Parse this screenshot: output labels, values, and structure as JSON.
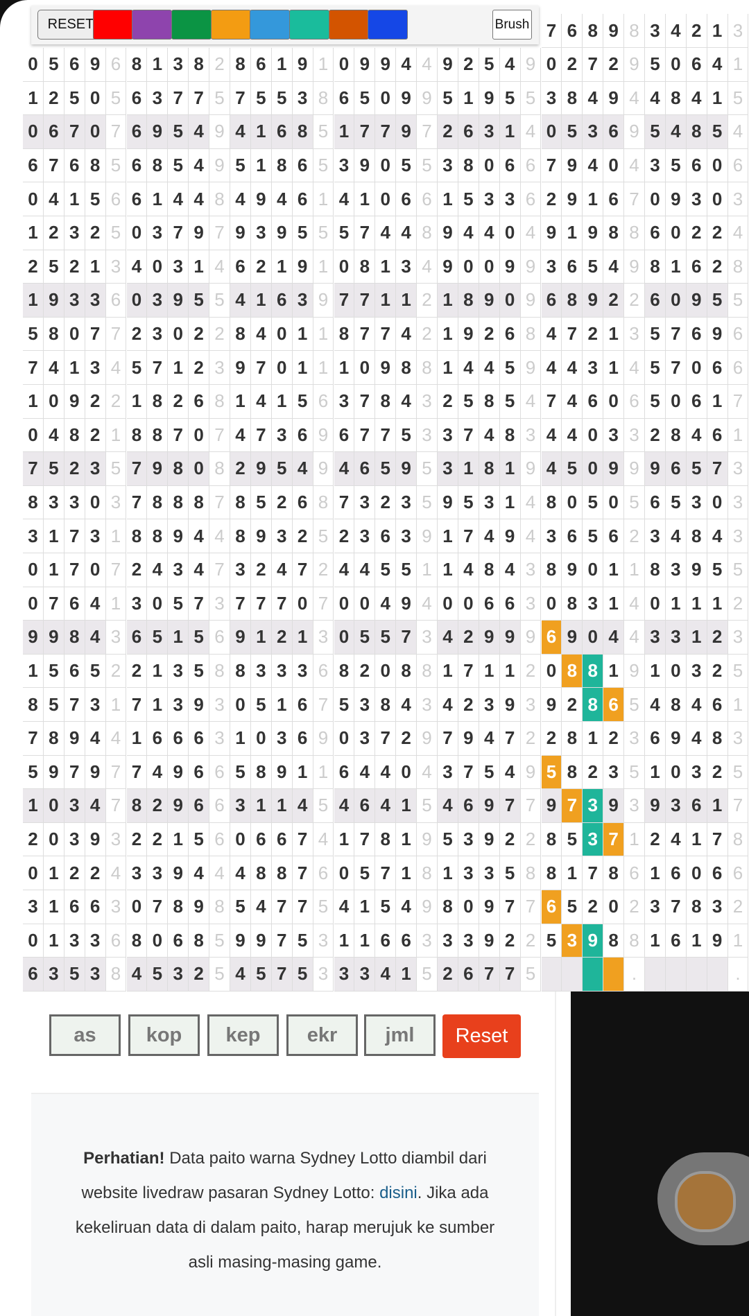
{
  "toolbar": {
    "reset": "RESET",
    "brush": "Brush",
    "colors": [
      "#ff0000",
      "#8e44ad",
      "#0b9444",
      "#f39c12",
      "#3498db",
      "#1abc9c",
      "#d35400",
      "#1547e6"
    ]
  },
  "grid": {
    "partial_row": [
      "7",
      "6",
      "8",
      "9",
      "8",
      "3",
      "4",
      "2",
      "1",
      "3"
    ],
    "rows": [
      [
        "0",
        "5",
        "6",
        "9",
        "6",
        "8",
        "1",
        "3",
        "8",
        "2",
        "8",
        "6",
        "1",
        "9",
        "1",
        "0",
        "9",
        "9",
        "4",
        "4",
        "9",
        "2",
        "5",
        "4",
        "9",
        "0",
        "2",
        "7",
        "2",
        "9",
        "5",
        "0",
        "6",
        "4",
        "1"
      ],
      [
        "1",
        "2",
        "5",
        "0",
        "5",
        "6",
        "3",
        "7",
        "7",
        "5",
        "7",
        "5",
        "5",
        "3",
        "8",
        "6",
        "5",
        "0",
        "9",
        "9",
        "5",
        "1",
        "9",
        "5",
        "5",
        "3",
        "8",
        "4",
        "9",
        "4",
        "4",
        "8",
        "4",
        "1",
        "5"
      ],
      [
        "0",
        "6",
        "7",
        "0",
        "7",
        "6",
        "9",
        "5",
        "4",
        "9",
        "4",
        "1",
        "6",
        "8",
        "5",
        "1",
        "7",
        "7",
        "9",
        "7",
        "2",
        "6",
        "3",
        "1",
        "4",
        "0",
        "5",
        "3",
        "6",
        "9",
        "5",
        "4",
        "8",
        "5",
        "4"
      ],
      [
        "6",
        "7",
        "6",
        "8",
        "5",
        "6",
        "8",
        "5",
        "4",
        "9",
        "5",
        "1",
        "8",
        "6",
        "5",
        "3",
        "9",
        "0",
        "5",
        "5",
        "3",
        "8",
        "0",
        "6",
        "6",
        "7",
        "9",
        "4",
        "0",
        "4",
        "3",
        "5",
        "6",
        "0",
        "6"
      ],
      [
        "0",
        "4",
        "1",
        "5",
        "6",
        "6",
        "1",
        "4",
        "4",
        "8",
        "4",
        "9",
        "4",
        "6",
        "1",
        "4",
        "1",
        "0",
        "6",
        "6",
        "1",
        "5",
        "3",
        "3",
        "6",
        "2",
        "9",
        "1",
        "6",
        "7",
        "0",
        "9",
        "3",
        "0",
        "3"
      ],
      [
        "1",
        "2",
        "3",
        "2",
        "5",
        "0",
        "3",
        "7",
        "9",
        "7",
        "9",
        "3",
        "9",
        "5",
        "5",
        "5",
        "7",
        "4",
        "4",
        "8",
        "9",
        "4",
        "4",
        "0",
        "4",
        "9",
        "1",
        "9",
        "8",
        "8",
        "6",
        "0",
        "2",
        "2",
        "4"
      ],
      [
        "2",
        "5",
        "2",
        "1",
        "3",
        "4",
        "0",
        "3",
        "1",
        "4",
        "6",
        "2",
        "1",
        "9",
        "1",
        "0",
        "8",
        "1",
        "3",
        "4",
        "9",
        "0",
        "0",
        "9",
        "9",
        "3",
        "6",
        "5",
        "4",
        "9",
        "8",
        "1",
        "6",
        "2",
        "8"
      ],
      [
        "1",
        "9",
        "3",
        "3",
        "6",
        "0",
        "3",
        "9",
        "5",
        "5",
        "4",
        "1",
        "6",
        "3",
        "9",
        "7",
        "7",
        "1",
        "1",
        "2",
        "1",
        "8",
        "9",
        "0",
        "9",
        "6",
        "8",
        "9",
        "2",
        "2",
        "6",
        "0",
        "9",
        "5",
        "5"
      ],
      [
        "5",
        "8",
        "0",
        "7",
        "7",
        "2",
        "3",
        "0",
        "2",
        "2",
        "8",
        "4",
        "0",
        "1",
        "1",
        "8",
        "7",
        "7",
        "4",
        "2",
        "1",
        "9",
        "2",
        "6",
        "8",
        "4",
        "7",
        "2",
        "1",
        "3",
        "5",
        "7",
        "6",
        "9",
        "6"
      ],
      [
        "7",
        "4",
        "1",
        "3",
        "4",
        "5",
        "7",
        "1",
        "2",
        "3",
        "9",
        "7",
        "0",
        "1",
        "1",
        "1",
        "0",
        "9",
        "8",
        "8",
        "1",
        "4",
        "4",
        "5",
        "9",
        "4",
        "4",
        "3",
        "1",
        "4",
        "5",
        "7",
        "0",
        "6",
        "6"
      ],
      [
        "1",
        "0",
        "9",
        "2",
        "2",
        "1",
        "8",
        "2",
        "6",
        "8",
        "1",
        "4",
        "1",
        "5",
        "6",
        "3",
        "7",
        "8",
        "4",
        "3",
        "2",
        "5",
        "8",
        "5",
        "4",
        "7",
        "4",
        "6",
        "0",
        "6",
        "5",
        "0",
        "6",
        "1",
        "7"
      ],
      [
        "0",
        "4",
        "8",
        "2",
        "1",
        "8",
        "8",
        "7",
        "0",
        "7",
        "4",
        "7",
        "3",
        "6",
        "9",
        "6",
        "7",
        "7",
        "5",
        "3",
        "3",
        "7",
        "4",
        "8",
        "3",
        "4",
        "4",
        "0",
        "3",
        "3",
        "2",
        "8",
        "4",
        "6",
        "1"
      ],
      [
        "7",
        "5",
        "2",
        "3",
        "5",
        "7",
        "9",
        "8",
        "0",
        "8",
        "2",
        "9",
        "5",
        "4",
        "9",
        "4",
        "6",
        "5",
        "9",
        "5",
        "3",
        "1",
        "8",
        "1",
        "9",
        "4",
        "5",
        "0",
        "9",
        "9",
        "9",
        "6",
        "5",
        "7",
        "3"
      ],
      [
        "8",
        "3",
        "3",
        "0",
        "3",
        "7",
        "8",
        "8",
        "8",
        "7",
        "8",
        "5",
        "2",
        "6",
        "8",
        "7",
        "3",
        "2",
        "3",
        "5",
        "9",
        "5",
        "3",
        "1",
        "4",
        "8",
        "0",
        "5",
        "0",
        "5",
        "6",
        "5",
        "3",
        "0",
        "3"
      ],
      [
        "3",
        "1",
        "7",
        "3",
        "1",
        "8",
        "8",
        "9",
        "4",
        "4",
        "8",
        "9",
        "3",
        "2",
        "5",
        "2",
        "3",
        "6",
        "3",
        "9",
        "1",
        "7",
        "4",
        "9",
        "4",
        "3",
        "6",
        "5",
        "6",
        "2",
        "3",
        "4",
        "8",
        "4",
        "3"
      ],
      [
        "0",
        "1",
        "7",
        "0",
        "7",
        "2",
        "4",
        "3",
        "4",
        "7",
        "3",
        "2",
        "4",
        "7",
        "2",
        "4",
        "4",
        "5",
        "5",
        "1",
        "1",
        "4",
        "8",
        "4",
        "3",
        "8",
        "9",
        "0",
        "1",
        "1",
        "8",
        "3",
        "9",
        "5",
        "5"
      ],
      [
        "0",
        "7",
        "6",
        "4",
        "1",
        "3",
        "0",
        "5",
        "7",
        "3",
        "7",
        "7",
        "7",
        "0",
        "7",
        "0",
        "0",
        "4",
        "9",
        "4",
        "0",
        "0",
        "6",
        "6",
        "3",
        "0",
        "8",
        "3",
        "1",
        "4",
        "0",
        "1",
        "1",
        "1",
        "2"
      ],
      [
        "9",
        "9",
        "8",
        "4",
        "3",
        "6",
        "5",
        "1",
        "5",
        "6",
        "9",
        "1",
        "2",
        "1",
        "3",
        "0",
        "5",
        "5",
        "7",
        "3",
        "4",
        "2",
        "9",
        "9",
        "9",
        "6",
        "9",
        "0",
        "4",
        "4",
        "3",
        "3",
        "1",
        "2",
        "3"
      ],
      [
        "1",
        "5",
        "6",
        "5",
        "2",
        "2",
        "1",
        "3",
        "5",
        "8",
        "8",
        "3",
        "3",
        "3",
        "6",
        "8",
        "2",
        "0",
        "8",
        "8",
        "1",
        "7",
        "1",
        "1",
        "2",
        "0",
        "8",
        "8",
        "1",
        "9",
        "1",
        "0",
        "3",
        "2",
        "5"
      ],
      [
        "8",
        "5",
        "7",
        "3",
        "1",
        "7",
        "1",
        "3",
        "9",
        "3",
        "0",
        "5",
        "1",
        "6",
        "7",
        "5",
        "3",
        "8",
        "4",
        "3",
        "4",
        "2",
        "3",
        "9",
        "3",
        "9",
        "2",
        "8",
        "6",
        "5",
        "4",
        "8",
        "4",
        "6",
        "1"
      ],
      [
        "7",
        "8",
        "9",
        "4",
        "4",
        "1",
        "6",
        "6",
        "6",
        "3",
        "1",
        "0",
        "3",
        "6",
        "9",
        "0",
        "3",
        "7",
        "2",
        "9",
        "7",
        "9",
        "4",
        "7",
        "2",
        "2",
        "8",
        "1",
        "2",
        "3",
        "6",
        "9",
        "4",
        "8",
        "3"
      ],
      [
        "5",
        "9",
        "7",
        "9",
        "7",
        "7",
        "4",
        "9",
        "6",
        "6",
        "5",
        "8",
        "9",
        "1",
        "1",
        "6",
        "4",
        "4",
        "0",
        "4",
        "3",
        "7",
        "5",
        "4",
        "9",
        "5",
        "8",
        "2",
        "3",
        "5",
        "1",
        "0",
        "3",
        "2",
        "5"
      ],
      [
        "1",
        "0",
        "3",
        "4",
        "7",
        "8",
        "2",
        "9",
        "6",
        "6",
        "3",
        "1",
        "1",
        "4",
        "5",
        "4",
        "6",
        "4",
        "1",
        "5",
        "4",
        "6",
        "9",
        "7",
        "7",
        "9",
        "7",
        "3",
        "9",
        "3",
        "9",
        "3",
        "6",
        "1",
        "7"
      ],
      [
        "2",
        "0",
        "3",
        "9",
        "3",
        "2",
        "2",
        "1",
        "5",
        "6",
        "0",
        "6",
        "6",
        "7",
        "4",
        "1",
        "7",
        "8",
        "1",
        "9",
        "5",
        "3",
        "9",
        "2",
        "2",
        "8",
        "5",
        "3",
        "7",
        "1",
        "2",
        "4",
        "1",
        "7",
        "8"
      ],
      [
        "0",
        "1",
        "2",
        "2",
        "4",
        "3",
        "3",
        "9",
        "4",
        "4",
        "4",
        "8",
        "8",
        "7",
        "6",
        "0",
        "5",
        "7",
        "1",
        "8",
        "1",
        "3",
        "3",
        "5",
        "8",
        "8",
        "1",
        "7",
        "8",
        "6",
        "1",
        "6",
        "0",
        "6",
        "6"
      ],
      [
        "3",
        "1",
        "6",
        "6",
        "3",
        "0",
        "7",
        "8",
        "9",
        "8",
        "5",
        "4",
        "7",
        "7",
        "5",
        "4",
        "1",
        "5",
        "4",
        "9",
        "8",
        "0",
        "9",
        "7",
        "7",
        "6",
        "5",
        "2",
        "0",
        "2",
        "3",
        "7",
        "8",
        "3",
        "2"
      ],
      [
        "0",
        "1",
        "3",
        "3",
        "6",
        "8",
        "0",
        "6",
        "8",
        "5",
        "9",
        "9",
        "7",
        "5",
        "3",
        "1",
        "1",
        "6",
        "6",
        "3",
        "3",
        "3",
        "9",
        "2",
        "2",
        "5",
        "3",
        "9",
        "8",
        "8",
        "1",
        "6",
        "1",
        "9",
        "1"
      ],
      [
        "6",
        "3",
        "5",
        "3",
        "8",
        "4",
        "5",
        "3",
        "2",
        "5",
        "4",
        "5",
        "7",
        "5",
        "3",
        "3",
        "3",
        "4",
        "1",
        "5",
        "2",
        "6",
        "7",
        "7",
        "5",
        null,
        null,
        null,
        null,
        ".",
        null,
        null,
        null,
        null,
        "."
      ]
    ]
  },
  "inputs": [
    "as",
    "kop",
    "kep",
    "ekr",
    "jml"
  ],
  "reset_button": "Reset",
  "notice": {
    "bold": "Perhatian!",
    "text1": " Data paito warna Sydney Lotto diambil dari website livedraw pasaran Sydney Lotto: ",
    "link": "disini",
    "text2": ". Jika ada kekeliruan data di dalam paito, harap merujuk ke sumber asli masing-masing game."
  }
}
